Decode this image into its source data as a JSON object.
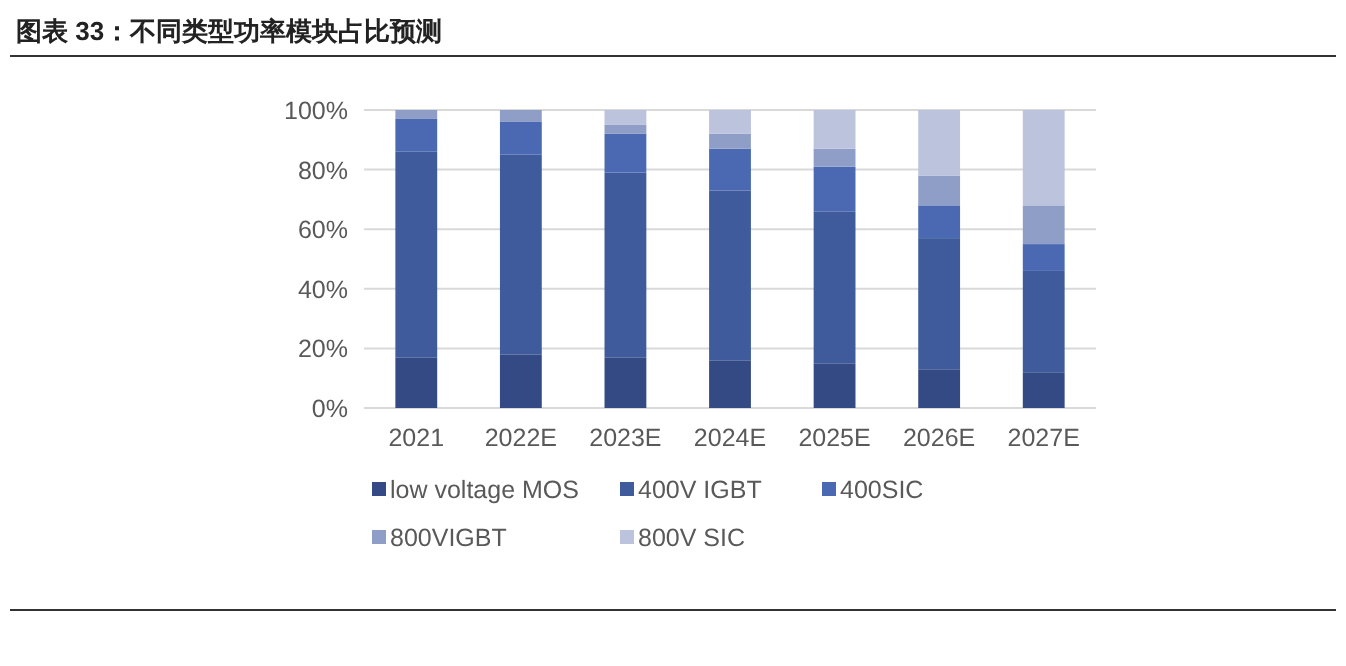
{
  "chart_data": {
    "type": "bar",
    "title": "图表 33：不同类型功率模块占比预测",
    "stacked": true,
    "categories": [
      "2021",
      "2022E",
      "2023E",
      "2024E",
      "2025E",
      "2026E",
      "2027E"
    ],
    "series": [
      {
        "name": "low voltage MOS",
        "color": "#344a84",
        "values": [
          17,
          18,
          17,
          16,
          15,
          13,
          12
        ]
      },
      {
        "name": "400V IGBT",
        "color": "#3f5b9c",
        "values": [
          69,
          67,
          62,
          57,
          51,
          44,
          34
        ]
      },
      {
        "name": "400SIC",
        "color": "#4a69b2",
        "values": [
          11,
          11,
          13,
          14,
          15,
          11,
          9
        ]
      },
      {
        "name": "800VIGBT",
        "color": "#8f9ec6",
        "values": [
          3,
          4,
          3,
          5,
          6,
          10,
          13
        ]
      },
      {
        "name": "800V SIC",
        "color": "#bcc3dd",
        "values": [
          null,
          null,
          5,
          8,
          13,
          22,
          32
        ]
      }
    ],
    "ylim": [
      0,
      100
    ],
    "yticks": [
      {
        "value": 0,
        "label": "0%"
      },
      {
        "value": 20,
        "label": "20%"
      },
      {
        "value": 40,
        "label": "40%"
      },
      {
        "value": 60,
        "label": "60%"
      },
      {
        "value": 80,
        "label": "80%"
      },
      {
        "value": 100,
        "label": "100%"
      }
    ],
    "grid": "y",
    "legend": "bottom"
  }
}
